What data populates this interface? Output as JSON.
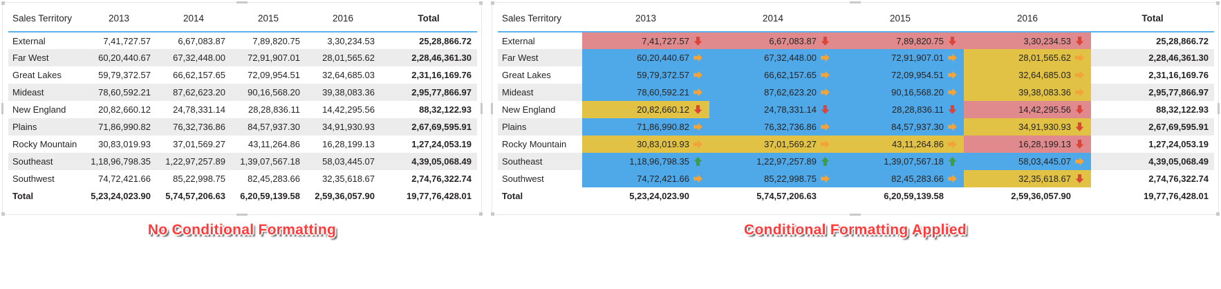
{
  "captions": {
    "left": "No Conditional Formatting",
    "right": "Conditional Formatting Applied"
  },
  "colors": {
    "cell_red": "#e08a8d",
    "cell_blue": "#4fa8e8",
    "cell_yellow": "#e2c244",
    "arrow_down": "#dc4437",
    "arrow_right": "#f2a33a",
    "arrow_up": "#3f9c45",
    "header_rule": "#58b2ee",
    "row_band": "#ececec",
    "caption_red": "#ff3b3b",
    "text": "#252423"
  },
  "chart_data": {
    "type": "table",
    "title": "Sales by Territory and Year — plain matrix vs conditional formatting (background colors and KPI arrows)",
    "columns": [
      "Sales Territory",
      "2013",
      "2014",
      "2015",
      "2016",
      "Total"
    ],
    "rows": [
      {
        "territory": "External",
        "values": [
          "7,41,727.57",
          "6,67,083.87",
          "7,89,820.75",
          "3,30,234.53"
        ],
        "total": "25,28,866.72",
        "formats": [
          "red:down",
          "red:down",
          "red:down",
          "red:down"
        ]
      },
      {
        "territory": "Far West",
        "values": [
          "60,20,440.67",
          "67,32,448.00",
          "72,91,907.01",
          "28,01,565.62"
        ],
        "total": "2,28,46,361.30",
        "formats": [
          "blue:right",
          "blue:right",
          "blue:right",
          "yellow:right"
        ]
      },
      {
        "territory": "Great Lakes",
        "values": [
          "59,79,372.57",
          "66,62,157.65",
          "72,09,954.51",
          "32,64,685.03"
        ],
        "total": "2,31,16,169.76",
        "formats": [
          "blue:right",
          "blue:right",
          "blue:right",
          "yellow:right"
        ]
      },
      {
        "territory": "Mideast",
        "values": [
          "78,60,592.21",
          "87,62,623.20",
          "90,16,568.20",
          "39,38,083.36"
        ],
        "total": "2,95,77,866.97",
        "formats": [
          "blue:right",
          "blue:right",
          "blue:right",
          "yellow:right"
        ]
      },
      {
        "territory": "New England",
        "values": [
          "20,82,660.12",
          "24,78,331.14",
          "28,28,836.11",
          "14,42,295.56"
        ],
        "total": "88,32,122.93",
        "formats": [
          "yellow:down",
          "blue:down",
          "blue:down",
          "red:down"
        ]
      },
      {
        "territory": "Plains",
        "values": [
          "71,86,990.82",
          "76,32,736.86",
          "84,57,937.30",
          "34,91,930.93"
        ],
        "total": "2,67,69,595.91",
        "formats": [
          "blue:right",
          "blue:right",
          "blue:right",
          "yellow:down"
        ]
      },
      {
        "territory": "Rocky Mountain",
        "values": [
          "30,83,019.93",
          "37,01,569.27",
          "43,11,264.86",
          "16,28,199.13"
        ],
        "total": "1,27,24,053.19",
        "formats": [
          "yellow:right",
          "yellow:right",
          "yellow:right",
          "red:down"
        ]
      },
      {
        "territory": "Southeast",
        "values": [
          "1,18,96,798.35",
          "1,22,97,257.89",
          "1,39,07,567.18",
          "58,03,445.07"
        ],
        "total": "4,39,05,068.49",
        "formats": [
          "blue:up",
          "blue:up",
          "blue:up",
          "blue:right"
        ]
      },
      {
        "territory": "Southwest",
        "values": [
          "74,72,421.66",
          "85,22,998.75",
          "82,45,283.66",
          "32,35,618.67"
        ],
        "total": "2,74,76,322.74",
        "formats": [
          "blue:right",
          "blue:right",
          "blue:right",
          "yellow:down"
        ]
      }
    ],
    "total_row": {
      "territory": "Total",
      "values": [
        "5,23,24,023.90",
        "5,74,57,206.63",
        "6,20,59,139.58",
        "2,59,36,057.90"
      ],
      "total": "19,77,76,428.01"
    }
  }
}
